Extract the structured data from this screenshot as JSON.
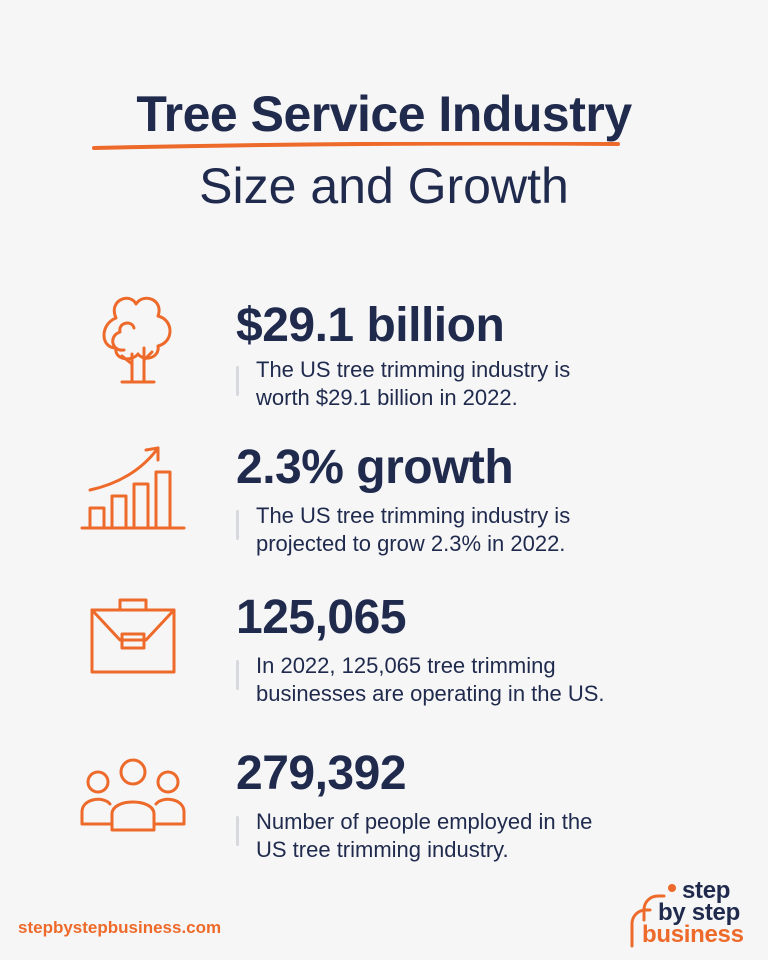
{
  "header": {
    "title_line1": "Tree Service Industry",
    "title_line2": "Size and Growth"
  },
  "stats": [
    {
      "headline": "$29.1 billion",
      "line1": "The US tree trimming industry is",
      "line2": "worth $29.1 billion in 2022.",
      "icon": "tree-icon"
    },
    {
      "headline": "2.3% growth",
      "line1": "The US tree trimming industry is",
      "line2": "projected to grow 2.3% in 2022.",
      "icon": "growth-chart-icon"
    },
    {
      "headline": "125,065",
      "line1": "In 2022, 125,065 tree trimming",
      "line2": "businesses are operating in the US.",
      "icon": "briefcase-icon"
    },
    {
      "headline": "279,392",
      "line1": "Number of people employed in the",
      "line2": "US tree trimming industry.",
      "icon": "people-icon"
    }
  ],
  "footer": {
    "url": "stepbystepbusiness.com",
    "logo_line1": "step",
    "logo_line2": "by step",
    "logo_line3": "business"
  },
  "colors": {
    "accent": "#ee6a2a",
    "navy": "#1f2a4d",
    "background": "#f6f6f7"
  }
}
